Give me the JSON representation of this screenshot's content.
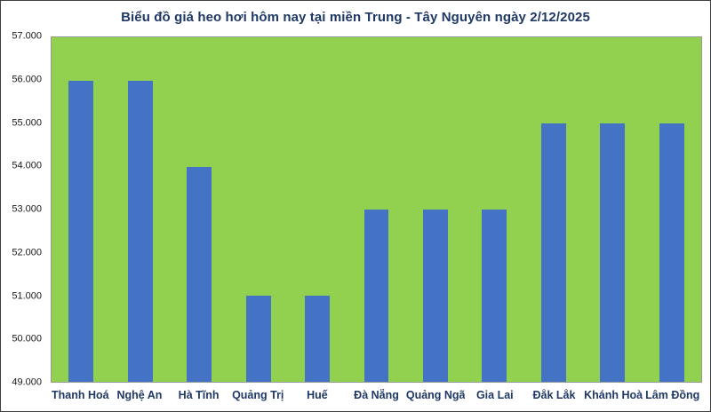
{
  "chart_data": {
    "type": "bar",
    "title": "Biểu đồ giá heo hơi hôm nay tại miền Trung - Tây Nguyên ngày 2/12/2025",
    "categories": [
      "Thanh Hoá",
      "Nghệ An",
      "Hà Tĩnh",
      "Quảng Trị",
      "Huế",
      "Đà Nẵng",
      "Quảng Ngãi",
      "Gia Lai",
      "Đắk Lắk",
      "Khánh Hoà",
      "Lâm Đồng"
    ],
    "values": [
      56000,
      56000,
      54000,
      51000,
      51000,
      53000,
      53000,
      53000,
      55000,
      55000,
      55000
    ],
    "xlabel": "",
    "ylabel": "",
    "ylim": [
      49000,
      57000
    ],
    "ytick_step": 1000,
    "ytick_labels": [
      "49.000",
      "50.000",
      "51.000",
      "52.000",
      "53.000",
      "54.000",
      "55.000",
      "56.000",
      "57.000"
    ],
    "grid": false,
    "legend": false,
    "colors": {
      "bar": "#4472c4",
      "plot_background": "#92d050",
      "title_text": "#1f3864",
      "category_text": "#1f3864",
      "axis_text": "#1a1a1a"
    }
  }
}
